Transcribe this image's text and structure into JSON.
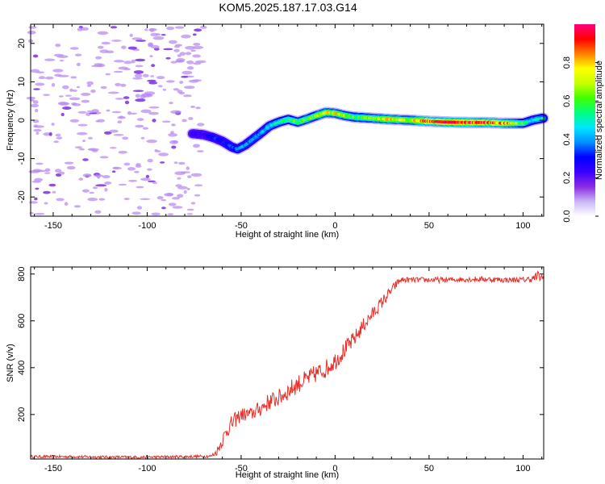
{
  "title": "KOM5.2025.187.17.03.G14",
  "colors": {
    "snr_line": "#e8302a",
    "axis": "#000000",
    "noise": "#b98cf0",
    "noise_dark": "#7a2ee0"
  },
  "chart_data": [
    {
      "type": "heatmap",
      "panel": "spectrogram",
      "xlabel": "Height of straight line (km)",
      "ylabel": "Frequency (Hz)",
      "xlim": [
        -162,
        111
      ],
      "ylim": [
        -25,
        25
      ],
      "xticks": [
        -150,
        -100,
        -50,
        0,
        50,
        100
      ],
      "yticks": [
        -20,
        -10,
        0,
        10,
        20
      ],
      "grid": false,
      "colorbar": {
        "label": "Normalized spectral amplitude",
        "range": [
          0,
          1
        ],
        "ticks": [
          "0.0",
          "0.2",
          "0.4",
          "0.6",
          "0.8"
        ],
        "tick_values": [
          0.0,
          0.2,
          0.4,
          0.6,
          0.8
        ],
        "colormap": [
          "#ffffff",
          "#c9b6f5",
          "#8a2be2",
          "#3a00ff",
          "#0000ff",
          "#0090ff",
          "#00e5ff",
          "#00ff80",
          "#40ff00",
          "#c8ff00",
          "#ffff00",
          "#ff8000",
          "#ff0000",
          "#ff0080"
        ]
      },
      "noise_region_x": [
        -162,
        -70
      ],
      "ridge": {
        "x": [
          -76,
          -70,
          -65,
          -60,
          -55,
          -52,
          -48,
          -44,
          -40,
          -35,
          -30,
          -25,
          -20,
          -15,
          -10,
          -5,
          0,
          5,
          10,
          20,
          30,
          40,
          50,
          60,
          70,
          80,
          90,
          100,
          105,
          110
        ],
        "y": [
          -3.5,
          -3.8,
          -4.5,
          -5.5,
          -7,
          -7.5,
          -6.5,
          -5,
          -3.5,
          -1.5,
          -0.5,
          0.2,
          -0.5,
          0.3,
          1.2,
          2,
          1.8,
          1.2,
          0.8,
          0.5,
          0.2,
          0,
          -0.3,
          -0.5,
          -0.6,
          -0.6,
          -0.8,
          -0.8,
          0,
          0.5
        ],
        "amplitude": [
          0.25,
          0.25,
          0.3,
          0.3,
          0.35,
          0.38,
          0.4,
          0.38,
          0.4,
          0.45,
          0.5,
          0.55,
          0.6,
          0.6,
          0.65,
          0.7,
          0.75,
          0.65,
          0.6,
          0.65,
          0.75,
          0.7,
          0.9,
          0.95,
          0.92,
          0.9,
          0.85,
          0.6,
          0.45,
          0.5
        ]
      }
    },
    {
      "type": "line",
      "panel": "snr",
      "xlabel": "Height of straight line (km)",
      "ylabel": "SNR (v/v)",
      "xlim": [
        -162,
        111
      ],
      "ylim": [
        10,
        830
      ],
      "xticks": [
        -150,
        -100,
        -50,
        0,
        50,
        100
      ],
      "yticks": [
        200,
        400,
        600,
        800
      ],
      "grid": false,
      "series": [
        {
          "x": [
            -162,
            -140,
            -120,
            -100,
            -80,
            -66,
            -63,
            -60,
            -57,
            -54,
            -50,
            -45,
            -40,
            -35,
            -30,
            -25,
            -20,
            -15,
            -10,
            -5,
            0,
            5,
            10,
            15,
            20,
            25,
            30,
            33,
            35,
            40,
            50,
            60,
            70,
            80,
            90,
            100,
            105,
            108,
            111
          ],
          "y": [
            20,
            20,
            18,
            18,
            20,
            22,
            40,
            90,
            140,
            170,
            200,
            200,
            225,
            255,
            270,
            300,
            330,
            350,
            375,
            395,
            430,
            475,
            520,
            580,
            630,
            680,
            730,
            760,
            775,
            775,
            775,
            775,
            778,
            778,
            775,
            775,
            780,
            790,
            780
          ],
          "noise_amplitude": [
            6,
            6,
            6,
            6,
            6,
            6,
            15,
            30,
            35,
            35,
            30,
            30,
            35,
            38,
            38,
            40,
            40,
            40,
            40,
            40,
            40,
            38,
            35,
            32,
            30,
            28,
            22,
            18,
            12,
            12,
            12,
            12,
            12,
            12,
            12,
            12,
            15,
            25,
            20
          ]
        }
      ]
    }
  ]
}
